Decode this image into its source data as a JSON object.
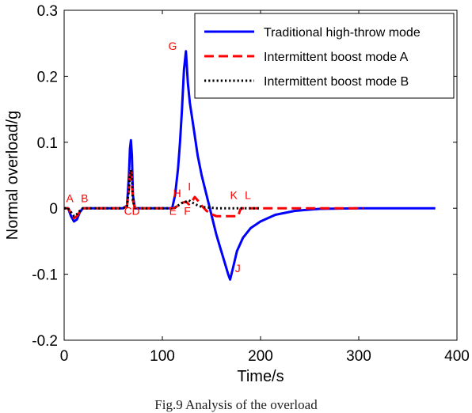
{
  "caption": "Fig.9 Analysis of the overload",
  "chart_data": {
    "type": "line",
    "title": "",
    "xlabel": "Time/s",
    "ylabel": "Normal overload/g",
    "xlim": [
      0,
      400
    ],
    "ylim": [
      -0.2,
      0.3
    ],
    "xticks": [
      0,
      100,
      200,
      300,
      400
    ],
    "yticks": [
      -0.2,
      -0.1,
      0,
      0.1,
      0.2,
      0.3
    ],
    "xtick_labels": [
      "0",
      "100",
      "200",
      "300",
      "400"
    ],
    "ytick_labels": [
      "-0.2",
      "-0.1",
      "0",
      "0.1",
      "0.2",
      "0.3"
    ],
    "grid": false,
    "legend_position": "top-right",
    "series": [
      {
        "name": "Traditional high-throw  mode",
        "color": "#0000ff",
        "style": "solid",
        "points": [
          [
            0,
            0
          ],
          [
            4,
            0
          ],
          [
            7,
            -0.012
          ],
          [
            10,
            -0.02
          ],
          [
            13,
            -0.017
          ],
          [
            16,
            -0.006
          ],
          [
            19,
            0
          ],
          [
            60,
            0
          ],
          [
            64,
            0.004
          ],
          [
            66,
            0.05
          ],
          [
            67,
            0.09
          ],
          [
            68,
            0.103
          ],
          [
            69,
            0.08
          ],
          [
            70,
            0.02
          ],
          [
            72,
            0
          ],
          [
            110,
            0
          ],
          [
            113,
            0.02
          ],
          [
            116,
            0.06
          ],
          [
            118,
            0.1
          ],
          [
            120,
            0.15
          ],
          [
            122,
            0.21
          ],
          [
            124,
            0.238
          ],
          [
            126,
            0.19
          ],
          [
            128,
            0.16
          ],
          [
            132,
            0.12
          ],
          [
            136,
            0.08
          ],
          [
            140,
            0.05
          ],
          [
            145,
            0.02
          ],
          [
            150,
            -0.01
          ],
          [
            155,
            -0.04
          ],
          [
            160,
            -0.065
          ],
          [
            164,
            -0.085
          ],
          [
            167,
            -0.1
          ],
          [
            169,
            -0.108
          ],
          [
            172,
            -0.09
          ],
          [
            176,
            -0.065
          ],
          [
            182,
            -0.045
          ],
          [
            190,
            -0.03
          ],
          [
            200,
            -0.02
          ],
          [
            215,
            -0.01
          ],
          [
            235,
            -0.004
          ],
          [
            260,
            -0.001
          ],
          [
            300,
            0
          ],
          [
            378,
            0
          ]
        ]
      },
      {
        "name": "Intermittent boost mode A",
        "color": "#ff0000",
        "style": "dashed",
        "points": [
          [
            0,
            0
          ],
          [
            4,
            0
          ],
          [
            7,
            -0.008
          ],
          [
            10,
            -0.015
          ],
          [
            13,
            -0.012
          ],
          [
            16,
            -0.005
          ],
          [
            19,
            0
          ],
          [
            60,
            0
          ],
          [
            64,
            0.003
          ],
          [
            66,
            0.03
          ],
          [
            67,
            0.052
          ],
          [
            68,
            0.06
          ],
          [
            69,
            0.045
          ],
          [
            70,
            0.012
          ],
          [
            72,
            0
          ],
          [
            112,
            0
          ],
          [
            116,
            0.004
          ],
          [
            120,
            0.008
          ],
          [
            124,
            0.01
          ],
          [
            127,
            0.006
          ],
          [
            130,
            0.01
          ],
          [
            133,
            0.017
          ],
          [
            136,
            0.012
          ],
          [
            140,
            0.004
          ],
          [
            145,
            -0.004
          ],
          [
            150,
            -0.009
          ],
          [
            155,
            -0.012
          ],
          [
            160,
            -0.012
          ],
          [
            170,
            -0.012
          ],
          [
            177,
            -0.012
          ],
          [
            178,
            -0.008
          ],
          [
            180,
            0
          ],
          [
            200,
            0
          ],
          [
            305,
            0
          ]
        ]
      },
      {
        "name": "Intermittent boost mode B",
        "color": "#000000",
        "style": "dotted",
        "points": [
          [
            0,
            0
          ],
          [
            4,
            0
          ],
          [
            7,
            -0.006
          ],
          [
            10,
            -0.012
          ],
          [
            13,
            -0.009
          ],
          [
            16,
            -0.004
          ],
          [
            19,
            0
          ],
          [
            60,
            0
          ],
          [
            64,
            0.003
          ],
          [
            66,
            0.03
          ],
          [
            67,
            0.05
          ],
          [
            68,
            0.058
          ],
          [
            69,
            0.045
          ],
          [
            70,
            0.012
          ],
          [
            72,
            0
          ],
          [
            112,
            0
          ],
          [
            116,
            0.004
          ],
          [
            120,
            0.008
          ],
          [
            124,
            0.01
          ],
          [
            127,
            0.012
          ],
          [
            130,
            0.009
          ],
          [
            135,
            0.005
          ],
          [
            140,
            0.002
          ],
          [
            148,
            0.001
          ],
          [
            156,
            0
          ],
          [
            200,
            0
          ]
        ]
      }
    ],
    "annotations": [
      {
        "text": "A",
        "x": 2,
        "y": 0.009
      },
      {
        "text": "B",
        "x": 17,
        "y": 0.009
      },
      {
        "text": "C",
        "x": 61,
        "y": -0.01
      },
      {
        "text": "D",
        "x": 69,
        "y": -0.01
      },
      {
        "text": "E",
        "x": 107,
        "y": -0.01
      },
      {
        "text": "F",
        "x": 122,
        "y": -0.01
      },
      {
        "text": "G",
        "x": 106,
        "y": 0.24
      },
      {
        "text": "H",
        "x": 111,
        "y": 0.017
      },
      {
        "text": "I",
        "x": 126,
        "y": 0.027
      },
      {
        "text": "J",
        "x": 174,
        "y": -0.097
      },
      {
        "text": "K",
        "x": 169,
        "y": 0.014
      },
      {
        "text": "L",
        "x": 184,
        "y": 0.014
      }
    ]
  }
}
